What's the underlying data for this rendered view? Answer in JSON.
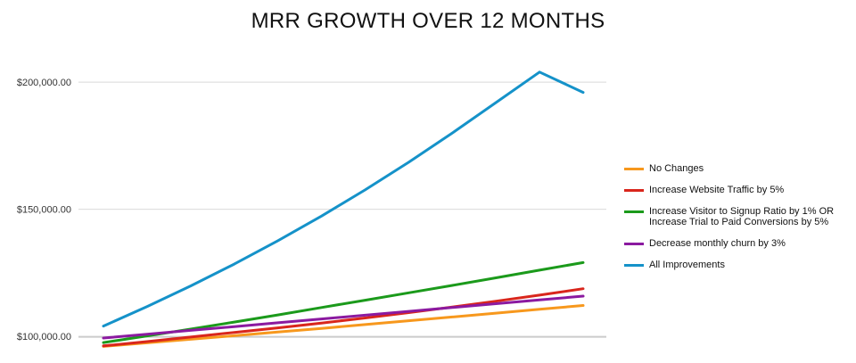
{
  "chart_data": {
    "type": "line",
    "title": "MRR GROWTH OVER 12 MONTHS",
    "xlabel": "",
    "ylabel": "",
    "x": [
      1,
      2,
      3,
      4,
      5,
      6,
      7,
      8,
      9,
      10,
      11,
      12
    ],
    "ylim": [
      100000,
      212000
    ],
    "yticks": [
      "$100,000.00",
      "$150,000.00",
      "$200,000.00"
    ],
    "ytick_values": [
      100000,
      150000,
      200000
    ],
    "grid": true,
    "legend_position": "right",
    "series": [
      {
        "name": "No Changes",
        "color": "#f7981d",
        "values": [
          96000,
          97400,
          98800,
          100200,
          101700,
          103100,
          104600,
          106100,
          107600,
          109100,
          110600,
          112100
        ]
      },
      {
        "name": "Increase Website Traffic by 5%",
        "color": "#d9261c",
        "values": [
          96200,
          97900,
          99700,
          101500,
          103300,
          105200,
          107200,
          109300,
          111500,
          113800,
          116200,
          118700
        ]
      },
      {
        "name": "Increase Visitor to Signup Ratio by 1% OR\nIncrease Trial to Paid Conversions by 5%",
        "color": "#1b9a1b",
        "values": [
          97500,
          100100,
          102800,
          105600,
          108400,
          111300,
          114200,
          117100,
          120000,
          123000,
          126000,
          129000
        ]
      },
      {
        "name": "Decrease monthly churn by 3%",
        "color": "#8b1aa0",
        "values": [
          99300,
          100800,
          102300,
          103800,
          105300,
          106800,
          108300,
          109800,
          111300,
          112800,
          114300,
          115800
        ]
      },
      {
        "name": "All Improvements",
        "color": "#1592c9",
        "values": [
          104000,
          111700,
          119800,
          128400,
          137600,
          147300,
          157600,
          168500,
          180000,
          192000,
          204000,
          196000
        ]
      }
    ]
  }
}
